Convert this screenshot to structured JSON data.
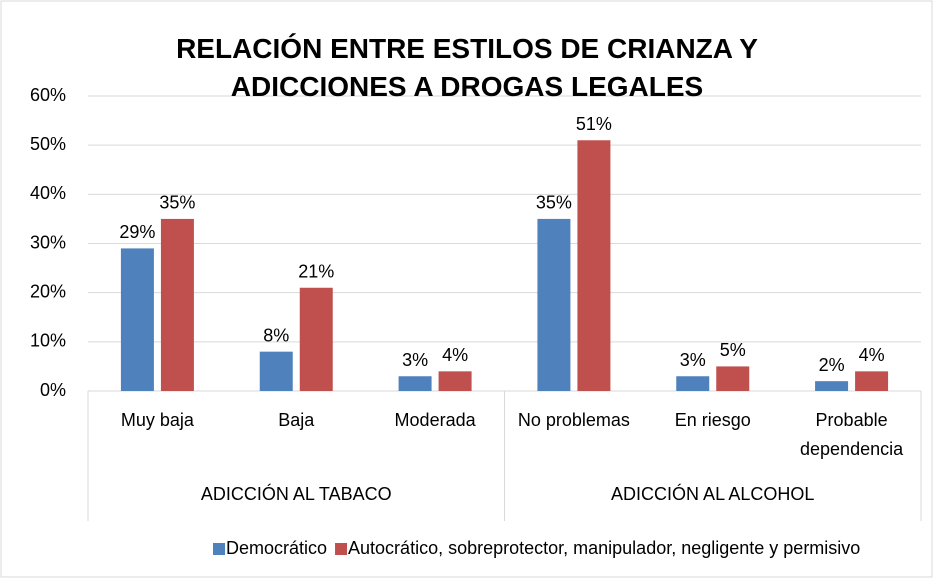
{
  "chart_data": {
    "type": "bar",
    "title": "RELACIÓN ENTRE ESTILOS DE CRIANZA Y ADICCIONES A DROGAS LEGALES",
    "categories": [
      "Muy baja",
      "Baja",
      "Moderada",
      "No problemas",
      "En riesgo",
      "Probable dependencia"
    ],
    "groups": [
      "ADICCIÓN AL TABACO",
      "ADICCIÓN AL ALCOHOL"
    ],
    "series": [
      {
        "name": "Democrático",
        "color": "#4f81bd",
        "values": [
          29,
          8,
          3,
          35,
          3,
          2
        ],
        "value_labels": [
          "29%",
          "8%",
          "3%",
          "35%",
          "3%",
          "2%"
        ]
      },
      {
        "name": "Autocrático, sobreprotector, manipulador, negligente y permisivo",
        "color": "#c0504d",
        "values": [
          35,
          21,
          4,
          51,
          5,
          4
        ],
        "value_labels": [
          "35%",
          "21%",
          "4%",
          "51%",
          "5%",
          "4%"
        ]
      }
    ],
    "ylim": [
      0,
      60
    ],
    "yticks": [
      {
        "value": 0,
        "label": "0%"
      },
      {
        "value": 10,
        "label": "10%"
      },
      {
        "value": 20,
        "label": "20%"
      },
      {
        "value": 30,
        "label": "30%"
      },
      {
        "value": 40,
        "label": "40%"
      },
      {
        "value": 50,
        "label": "50%"
      },
      {
        "value": 60,
        "label": "60%"
      }
    ],
    "grid": true,
    "legend": "bottom"
  }
}
